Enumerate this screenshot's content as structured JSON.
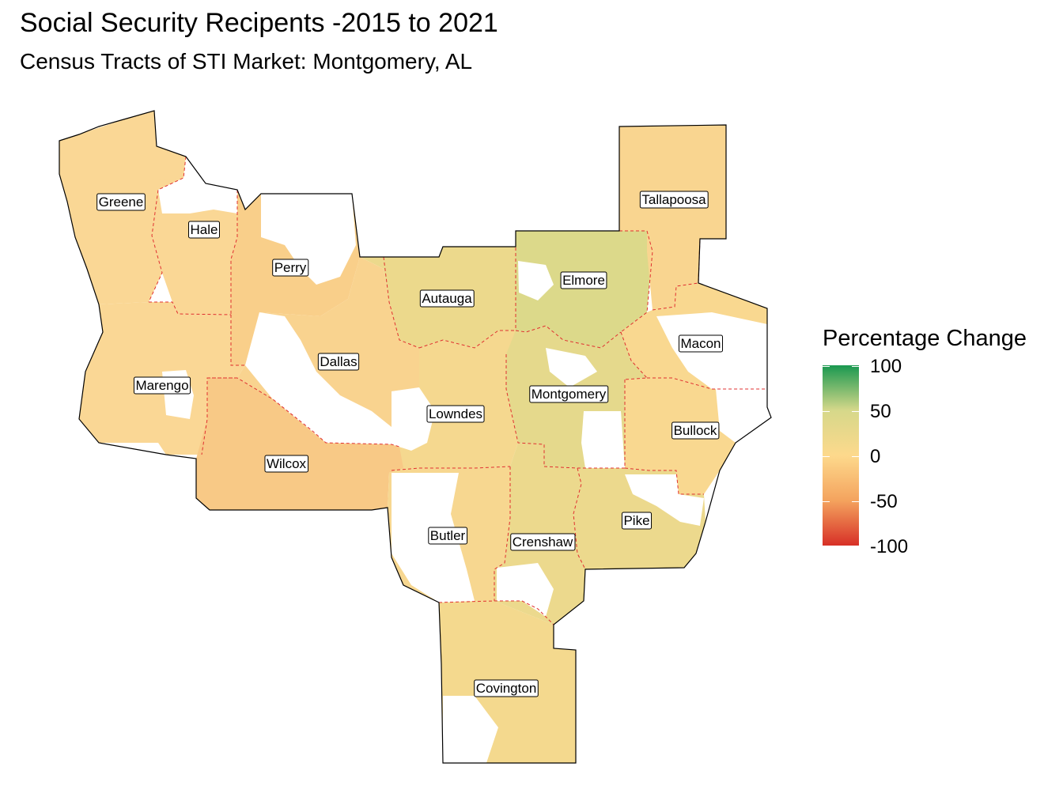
{
  "title": "Social Security Recipents -2015 to 2021",
  "subtitle": "Census Tracts of STI Market: Montgomery, AL",
  "legend": {
    "title": "Percentage Change",
    "ticks": [
      "100",
      "50",
      "0",
      "-50",
      "-100"
    ],
    "range": [
      -100,
      100
    ],
    "colors": {
      "high": "#1a9850",
      "mid_high": "#d6d88a",
      "mid": "#fdd98c",
      "mid_low": "#f4a35e",
      "low": "#d73027"
    }
  },
  "counties": [
    {
      "name": "Greene",
      "fill": "#fad795"
    },
    {
      "name": "Hale",
      "fill": "#fad795"
    },
    {
      "name": "Perry",
      "fill": "#f9cf8a"
    },
    {
      "name": "Autauga",
      "fill": "#ecd98c"
    },
    {
      "name": "Elmore",
      "fill": "#dcd98a"
    },
    {
      "name": "Tallapoosa",
      "fill": "#f9d590"
    },
    {
      "name": "Macon",
      "fill": "#f9d890"
    },
    {
      "name": "Marengo",
      "fill": "#fad795"
    },
    {
      "name": "Dallas",
      "fill": "#f9d38f"
    },
    {
      "name": "Lowndes",
      "fill": "#f5d88f"
    },
    {
      "name": "Montgomery",
      "fill": "#e5d98c"
    },
    {
      "name": "Bullock",
      "fill": "#f9d890"
    },
    {
      "name": "Wilcox",
      "fill": "#f8c986"
    },
    {
      "name": "Butler",
      "fill": "#f7d790"
    },
    {
      "name": "Crenshaw",
      "fill": "#ecd98d"
    },
    {
      "name": "Pike",
      "fill": "#ecd98d"
    },
    {
      "name": "Covington",
      "fill": "#f4d98e"
    }
  ]
}
